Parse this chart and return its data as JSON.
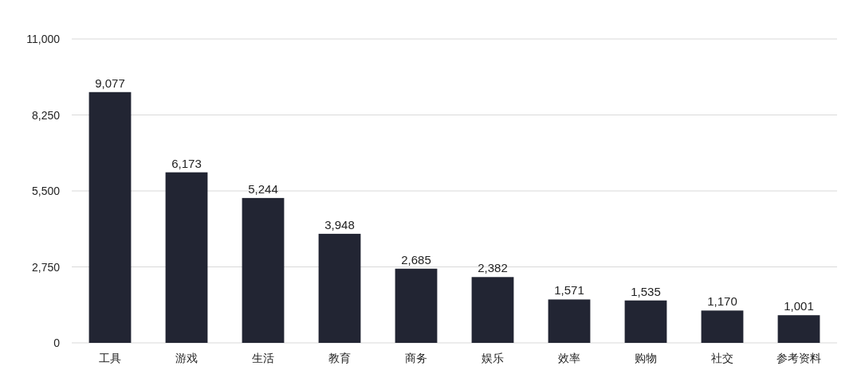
{
  "chart_data": {
    "type": "bar",
    "categories": [
      "工具",
      "游戏",
      "生活",
      "教育",
      "商务",
      "娱乐",
      "效率",
      "购物",
      "社交",
      "参考资料"
    ],
    "values": [
      9077,
      6173,
      5244,
      3948,
      2685,
      2382,
      1571,
      1535,
      1170,
      1001
    ],
    "value_labels": [
      "9,077",
      "6,173",
      "5,244",
      "3,948",
      "2,685",
      "2,382",
      "1,571",
      "1,535",
      "1,170",
      "1,001"
    ],
    "color": "#222533",
    "ylim": [
      0,
      11000
    ],
    "yticks": [
      0,
      {
        "value": 2750,
        "label": "2,750"
      },
      {
        "value": 5500,
        "label": "5,500"
      },
      {
        "value": 8250,
        "label": "8,250"
      },
      {
        "value": 11000,
        "label": "11,000"
      }
    ],
    "grid": "y"
  }
}
